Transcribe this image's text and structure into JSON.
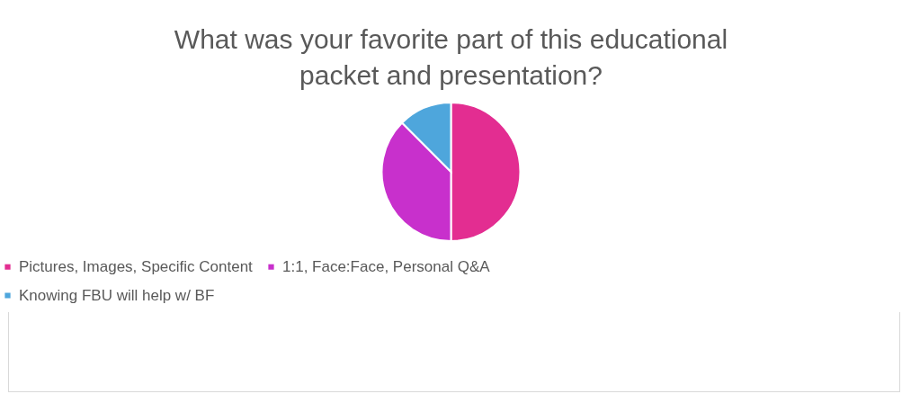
{
  "chart_data": {
    "type": "pie",
    "title": "What was your favorite part of this educational packet and presentation?",
    "categories": [
      "Pictures, Images, Specific Content",
      "1:1, Face:Face, Personal Q&A",
      "Knowing FBU will help w/ BF"
    ],
    "values": [
      50,
      37.5,
      12.5
    ],
    "colors": [
      "#e32d91",
      "#c830cc",
      "#4ea6dc"
    ],
    "legend": "bottom"
  }
}
